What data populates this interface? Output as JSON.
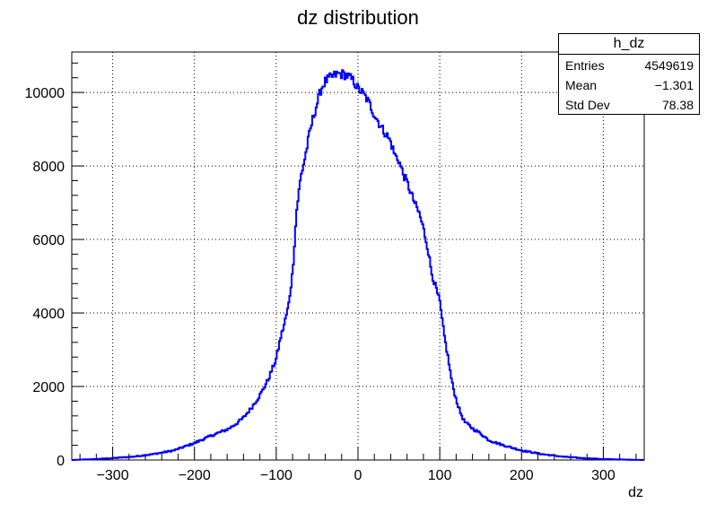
{
  "chart_data": {
    "type": "histogram",
    "title": "dz distribution",
    "xlabel": "dz",
    "ylabel": "",
    "xlim": [
      -350,
      350
    ],
    "ylim": [
      0,
      11100
    ],
    "x_ticks": [
      -300,
      -200,
      -100,
      0,
      100,
      200,
      300
    ],
    "x_tick_labels": [
      "−300",
      "−200",
      "−100",
      "0",
      "100",
      "200",
      "300"
    ],
    "y_ticks": [
      0,
      2000,
      4000,
      6000,
      8000,
      10000
    ],
    "y_tick_labels": [
      "0",
      "2000",
      "4000",
      "6000",
      "8000",
      "10000"
    ],
    "grid": true,
    "line_color": "#0000ff",
    "series": [
      {
        "name": "h_dz",
        "x": [
          -350,
          -325,
          -300,
          -275,
          -250,
          -225,
          -200,
          -190,
          -175,
          -160,
          -150,
          -140,
          -130,
          -120,
          -110,
          -100,
          -95,
          -90,
          -85,
          -80,
          -75,
          -70,
          -65,
          -60,
          -55,
          -50,
          -45,
          -40,
          -35,
          -30,
          -25,
          -20,
          -15,
          -10,
          -5,
          0,
          5,
          10,
          15,
          20,
          25,
          30,
          35,
          40,
          45,
          50,
          55,
          60,
          65,
          70,
          75,
          80,
          85,
          90,
          95,
          100,
          105,
          110,
          115,
          120,
          125,
          130,
          140,
          150,
          160,
          175,
          200,
          225,
          250,
          275,
          300,
          325,
          350
        ],
        "y": [
          0,
          20,
          50,
          90,
          160,
          260,
          460,
          560,
          700,
          830,
          970,
          1150,
          1430,
          1760,
          2180,
          2750,
          3300,
          3700,
          4200,
          5100,
          6800,
          7700,
          8200,
          8800,
          9300,
          9700,
          10100,
          10300,
          10380,
          10450,
          10500,
          10500,
          10480,
          10400,
          10300,
          10100,
          10000,
          9850,
          9650,
          9400,
          9200,
          9000,
          8850,
          8650,
          8300,
          8150,
          7800,
          7550,
          7250,
          6950,
          6700,
          6300,
          5800,
          5100,
          4700,
          4300,
          3450,
          2800,
          2100,
          1650,
          1300,
          1050,
          860,
          720,
          540,
          420,
          260,
          160,
          90,
          50,
          25,
          10,
          0
        ]
      }
    ]
  },
  "stats": {
    "title": "h_dz",
    "rows": [
      {
        "label": "Entries",
        "value": "4549619"
      },
      {
        "label": "Mean",
        "value": "−1.301"
      },
      {
        "label": "Std Dev",
        "value": "78.38"
      }
    ]
  }
}
